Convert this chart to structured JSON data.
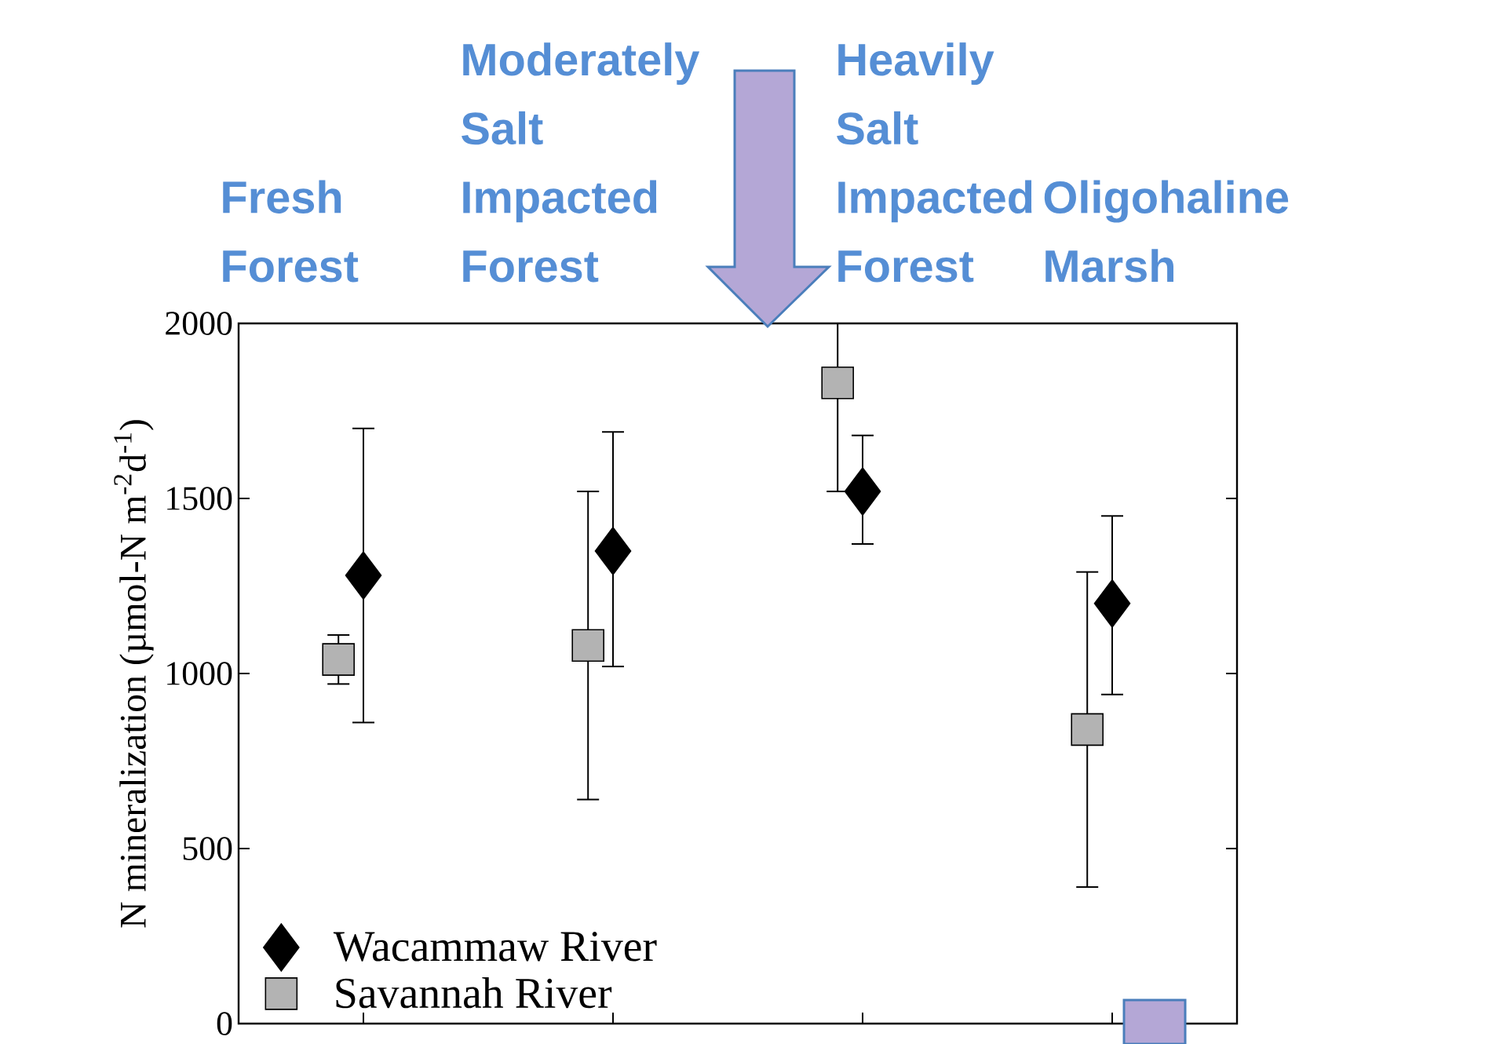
{
  "chart_data": {
    "type": "scatter",
    "ylabel": "N mineralization (µmol-N m$^{-2}$d$^{-1}$)",
    "categories": [
      "Fresh Forest",
      "Moderately Salt Impacted Forest",
      "Heavily Salt Impacted Forest",
      "Oligohaline Marsh"
    ],
    "ylim": [
      0,
      2000
    ],
    "yticks": [
      0,
      500,
      1000,
      1500,
      2000
    ],
    "legend": "bottom left",
    "grid": false,
    "series": [
      {
        "name": "Wacammaw River",
        "color": "#000000",
        "marker": "diamond",
        "values": [
          1280,
          1350,
          1520,
          1200
        ],
        "errors": [
          [
            860,
            1700
          ],
          [
            1020,
            1690
          ],
          [
            1370,
            1680
          ],
          [
            940,
            1450
          ]
        ]
      },
      {
        "name": "Savannah River",
        "color": "#b3b3b3",
        "marker": "square",
        "values": [
          1040,
          1080,
          1830,
          840
        ],
        "errors": [
          [
            970,
            1110
          ],
          [
            640,
            1520
          ],
          [
            1520,
            2000
          ],
          [
            390,
            1290
          ]
        ]
      }
    ]
  }
}
